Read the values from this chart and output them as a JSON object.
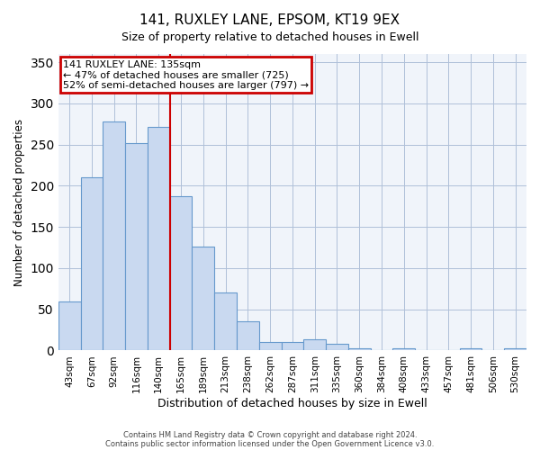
{
  "title1": "141, RUXLEY LANE, EPSOM, KT19 9EX",
  "title2": "Size of property relative to detached houses in Ewell",
  "xlabel": "Distribution of detached houses by size in Ewell",
  "ylabel": "Number of detached properties",
  "bar_labels": [
    "43sqm",
    "67sqm",
    "92sqm",
    "116sqm",
    "140sqm",
    "165sqm",
    "189sqm",
    "213sqm",
    "238sqm",
    "262sqm",
    "287sqm",
    "311sqm",
    "335sqm",
    "360sqm",
    "384sqm",
    "408sqm",
    "433sqm",
    "457sqm",
    "481sqm",
    "506sqm",
    "530sqm"
  ],
  "bar_values": [
    60,
    210,
    278,
    252,
    272,
    187,
    126,
    70,
    35,
    10,
    10,
    14,
    8,
    3,
    0,
    3,
    0,
    0,
    3,
    0,
    3
  ],
  "bar_color": "#c9d9f0",
  "bar_edge_color": "#6699cc",
  "vline_color": "#cc0000",
  "annotation_title": "141 RUXLEY LANE: 135sqm",
  "annotation_line1": "← 47% of detached houses are smaller (725)",
  "annotation_line2": "52% of semi-detached houses are larger (797) →",
  "annotation_box_color": "#cc0000",
  "ylim": [
    0,
    360
  ],
  "yticks": [
    0,
    50,
    100,
    150,
    200,
    250,
    300,
    350
  ],
  "footer1": "Contains HM Land Registry data © Crown copyright and database right 2024.",
  "footer2": "Contains public sector information licensed under the Open Government Licence v3.0.",
  "bg_color": "#f0f4fa"
}
